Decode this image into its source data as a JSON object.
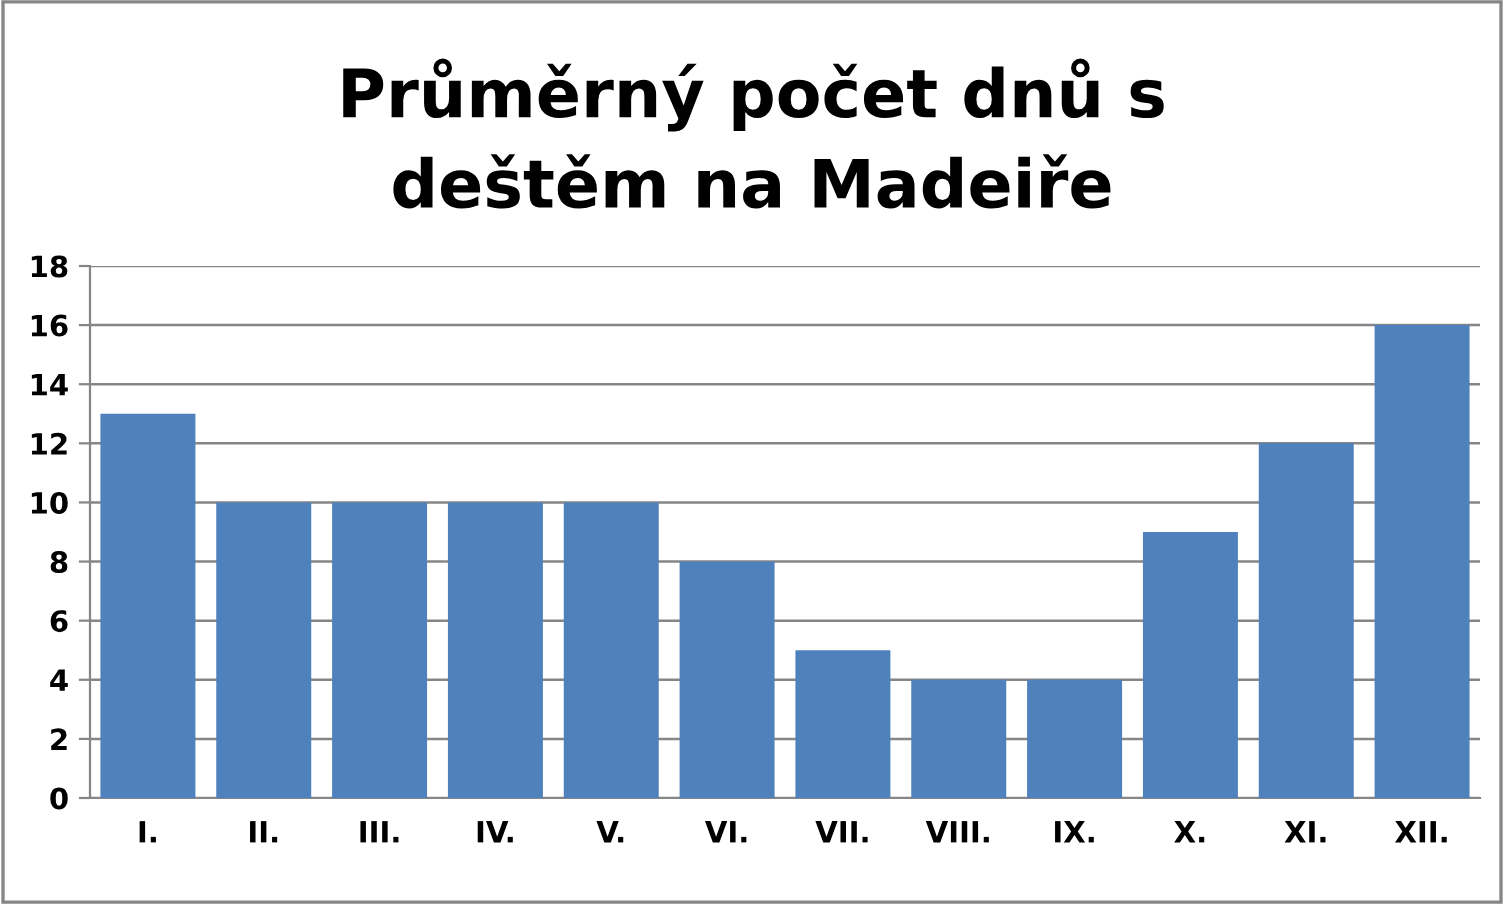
{
  "chart_data": {
    "type": "bar",
    "title": "Průměrný počet dnů s deštěm na Madeiře",
    "categories": [
      "I.",
      "II.",
      "III.",
      "IV.",
      "V.",
      "VI.",
      "VII.",
      "VIII.",
      "IX.",
      "X.",
      "XI.",
      "XII."
    ],
    "values": [
      13,
      10,
      10,
      10,
      10,
      8,
      5,
      4,
      4,
      9,
      12,
      16
    ],
    "color": "#4f81bd",
    "ylim": [
      0,
      18
    ],
    "yticks": [
      0,
      2,
      4,
      6,
      8,
      10,
      12,
      14,
      16,
      18
    ],
    "grid": "y",
    "legend": false
  }
}
